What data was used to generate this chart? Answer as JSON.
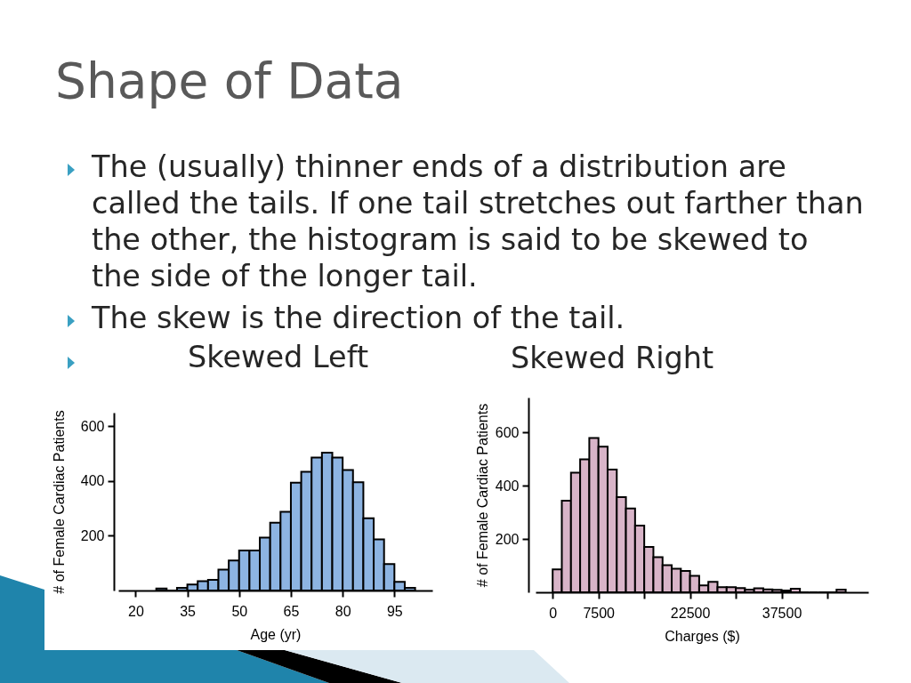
{
  "chart_data": [
    {
      "type": "other",
      "title": "Shape of Data",
      "annotations": [
        "The (usually) thinner ends of a distribution are called the tails. If one tail stretches out farther than the other, the histogram is said to be skewed to the side of the longer tail.",
        "The skew is the direction of the tail."
      ]
    },
    {
      "type": "histogram",
      "title": "Skewed Left",
      "xlabel": "Age (yr)",
      "ylabel": "# of Female Cardiac Patients",
      "bins": [
        26,
        29,
        32,
        35,
        38,
        41,
        44,
        47,
        50,
        53,
        56,
        59,
        62,
        65,
        68,
        71,
        74,
        77,
        80,
        83,
        86,
        89,
        92,
        95,
        98,
        101
      ],
      "values": [
        7,
        0,
        10,
        22,
        34,
        39,
        76,
        110,
        146,
        146,
        193,
        248,
        288,
        394,
        434,
        486,
        504,
        486,
        440,
        396,
        264,
        187,
        97,
        32,
        10
      ],
      "color": "#8db4e2",
      "xlim": [
        15,
        106
      ],
      "ylim": [
        0,
        650
      ],
      "xticks": [
        20,
        35,
        50,
        65,
        80,
        95
      ],
      "yticks": [
        200,
        400,
        600
      ]
    },
    {
      "type": "histogram",
      "title": "Skewed Right",
      "xlabel": "Charges ($)",
      "ylabel": "# of Female Cardiac Patients",
      "bins": [
        0,
        1500,
        3000,
        4500,
        6000,
        7500,
        9000,
        10500,
        12000,
        13500,
        15000,
        16500,
        18000,
        19500,
        21000,
        22500,
        24000,
        25500,
        27000,
        28500,
        30000,
        31500,
        33000,
        34500,
        36000,
        37500,
        39000,
        40500,
        42000,
        43500,
        45000,
        46500,
        48000
      ],
      "values": [
        86,
        343,
        448,
        498,
        578,
        546,
        460,
        357,
        314,
        250,
        170,
        132,
        102,
        88,
        80,
        62,
        26,
        39,
        19,
        19,
        16,
        10,
        15,
        11,
        9,
        7,
        13,
        0,
        0,
        0,
        0,
        10
      ],
      "color": "#d8b4c8",
      "xlim": [
        -2800,
        51700
      ],
      "ylim": [
        0,
        730
      ],
      "xticks": [
        0,
        7500,
        {
          "value": 15000,
          "label": null
        },
        22500,
        {
          "value": 30000,
          "label": null
        },
        37500,
        {
          "value": 45000,
          "label": null
        }
      ],
      "yticks": [
        200,
        400,
        600
      ]
    }
  ]
}
